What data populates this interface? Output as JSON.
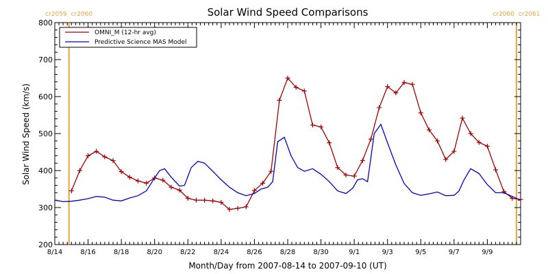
{
  "chart_data": {
    "type": "line",
    "title": "Solar Wind Speed Comparisons",
    "xlabel": "Month/Day from 2007-08-14 to 2007-09-10 (UT)",
    "ylabel": "Solar Wind Speed (km/s)",
    "xlim": [
      0,
      28
    ],
    "ylim": [
      200,
      800
    ],
    "y_ticks": [
      200,
      300,
      400,
      500,
      600,
      700,
      800
    ],
    "x_ticks": [
      {
        "day": 0,
        "label": "8/14"
      },
      {
        "day": 2,
        "label": "8/16"
      },
      {
        "day": 4,
        "label": "8/18"
      },
      {
        "day": 6,
        "label": "8/20"
      },
      {
        "day": 8,
        "label": "8/22"
      },
      {
        "day": 10,
        "label": "8/24"
      },
      {
        "day": 12,
        "label": "8/26"
      },
      {
        "day": 14,
        "label": "8/28"
      },
      {
        "day": 16,
        "label": "8/30"
      },
      {
        "day": 18,
        "label": "9/1"
      },
      {
        "day": 20,
        "label": "9/3"
      },
      {
        "day": 22,
        "label": "9/5"
      },
      {
        "day": 24,
        "label": "9/7"
      },
      {
        "day": 26,
        "label": "9/9"
      }
    ],
    "carrington_markers": [
      {
        "day": 0.85,
        "label_left": "cr2059",
        "label_right": "cr2060"
      },
      {
        "day": 27.75,
        "label_left": "cr2060",
        "label_right": "cr2061"
      }
    ],
    "legend_position": "top-left",
    "colors": {
      "omni": "#a00000",
      "mas": "#0000c8",
      "marker": "#e8a33a"
    },
    "series": [
      {
        "name": "OMNI_M (12-hr avg)",
        "color": "#a00000",
        "marker": "plus",
        "x": [
          1.0,
          1.5,
          2.0,
          2.5,
          3.0,
          3.5,
          4.0,
          4.5,
          5.0,
          5.5,
          6.0,
          6.5,
          7.0,
          7.5,
          8.0,
          8.5,
          9.0,
          9.5,
          10.0,
          10.5,
          11.0,
          11.5,
          12.0,
          12.5,
          13.0,
          13.5,
          14.0,
          14.5,
          15.0,
          15.5,
          16.0,
          16.5,
          17.0,
          17.5,
          18.0,
          18.5,
          19.0,
          19.5,
          20.0,
          20.5,
          21.0,
          21.5,
          22.0,
          22.5,
          23.0,
          23.5,
          24.0,
          24.5,
          25.0,
          25.5,
          26.0,
          26.5,
          27.0,
          27.5,
          28.0
        ],
        "y": [
          345,
          400,
          440,
          452,
          437,
          427,
          397,
          382,
          372,
          366,
          380,
          374,
          355,
          347,
          325,
          320,
          320,
          318,
          314,
          295,
          298,
          302,
          346,
          366,
          398,
          590,
          650,
          625,
          615,
          523,
          518,
          475,
          408,
          388,
          385,
          427,
          485,
          570,
          627,
          610,
          638,
          633,
          556,
          510,
          480,
          430,
          452,
          542,
          500,
          476,
          466,
          402,
          343,
          325,
          322
        ]
      },
      {
        "name": "Predictive Science MAS Model",
        "color": "#0000c8",
        "marker": "none",
        "x": [
          0.0,
          0.5,
          1.0,
          1.5,
          2.0,
          2.5,
          3.0,
          3.5,
          4.0,
          4.5,
          5.0,
          5.5,
          6.0,
          6.3,
          6.6,
          7.0,
          7.5,
          7.8,
          8.2,
          8.6,
          9.0,
          9.5,
          10.0,
          10.5,
          11.0,
          11.5,
          12.0,
          12.4,
          12.8,
          13.1,
          13.4,
          13.8,
          14.2,
          14.6,
          15.0,
          15.5,
          16.0,
          16.5,
          17.0,
          17.5,
          17.9,
          18.2,
          18.5,
          18.8,
          19.2,
          19.6,
          20.0,
          20.5,
          21.0,
          21.5,
          22.0,
          22.5,
          23.0,
          23.5,
          24.0,
          24.3,
          24.6,
          25.0,
          25.5,
          26.0,
          26.5,
          27.0,
          27.5,
          28.0
        ],
        "y": [
          320,
          316,
          317,
          320,
          324,
          330,
          328,
          320,
          318,
          326,
          332,
          345,
          380,
          400,
          405,
          382,
          358,
          360,
          408,
          425,
          420,
          398,
          375,
          355,
          340,
          332,
          338,
          350,
          355,
          370,
          478,
          490,
          440,
          408,
          398,
          405,
          390,
          370,
          345,
          338,
          352,
          375,
          378,
          370,
          500,
          525,
          475,
          415,
          365,
          340,
          333,
          337,
          342,
          332,
          333,
          345,
          375,
          405,
          392,
          362,
          340,
          340,
          330,
          320
        ]
      }
    ]
  }
}
